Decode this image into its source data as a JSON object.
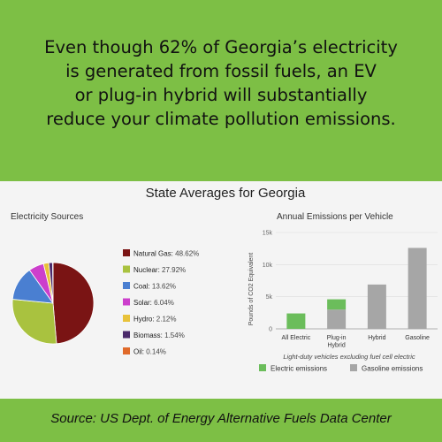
{
  "headline": {
    "lines": [
      "Even though 62% of Georgia’s electricity",
      "is generated from fossil fuels, an EV",
      "or plug-in hybrid will substantially",
      "reduce your climate pollution emissions."
    ]
  },
  "panel_title": "State Averages for Georgia",
  "footer": {
    "source": "Source:  US Dept. of Energy Alternative Fuels Data Center"
  },
  "chart_data": [
    {
      "type": "pie",
      "title": "Electricity Sources",
      "slices": [
        {
          "name": "Natural Gas",
          "value": 48.62,
          "label": "48.62%",
          "color": "#7a1414"
        },
        {
          "name": "Nuclear",
          "value": 27.92,
          "label": "27.92%",
          "color": "#a9c23f"
        },
        {
          "name": "Coal",
          "value": 13.62,
          "label": "13.62%",
          "color": "#4a7fd1"
        },
        {
          "name": "Solar",
          "value": 6.04,
          "label": "6.04%",
          "color": "#cc3fcc"
        },
        {
          "name": "Hydro",
          "value": 2.12,
          "label": "2.12%",
          "color": "#e8c23a"
        },
        {
          "name": "Biomass",
          "value": 1.54,
          "label": "1.54%",
          "color": "#4b2a6b"
        },
        {
          "name": "Oil",
          "value": 0.14,
          "label": "0.14%",
          "color": "#e06a2a"
        }
      ],
      "legend_position": "right"
    },
    {
      "type": "bar",
      "stacked": true,
      "title": "Annual Emissions per Vehicle",
      "ylabel": "Pounds of CO2 Equivalent",
      "xlabel": "Light-duty vehicles excluding fuel cell electric",
      "categories": [
        [
          "All Electric"
        ],
        [
          "Plug-in",
          "Hybrid"
        ],
        [
          "Hybrid"
        ],
        [
          "Gasoline"
        ]
      ],
      "series": [
        {
          "name": "Electric emissions",
          "color": "#6bbd5b",
          "values": [
            2400,
            1600,
            0,
            0
          ]
        },
        {
          "name": "Gasoline emissions",
          "color": "#a6a6a6",
          "values": [
            0,
            3000,
            6900,
            12600
          ]
        }
      ],
      "ylim": [
        0,
        15000
      ],
      "yticks": [
        0,
        5000,
        10000,
        15000
      ],
      "ytick_labels": [
        "0",
        "5k",
        "10k",
        "15k"
      ],
      "grid": true,
      "legend_position": "bottom"
    }
  ]
}
